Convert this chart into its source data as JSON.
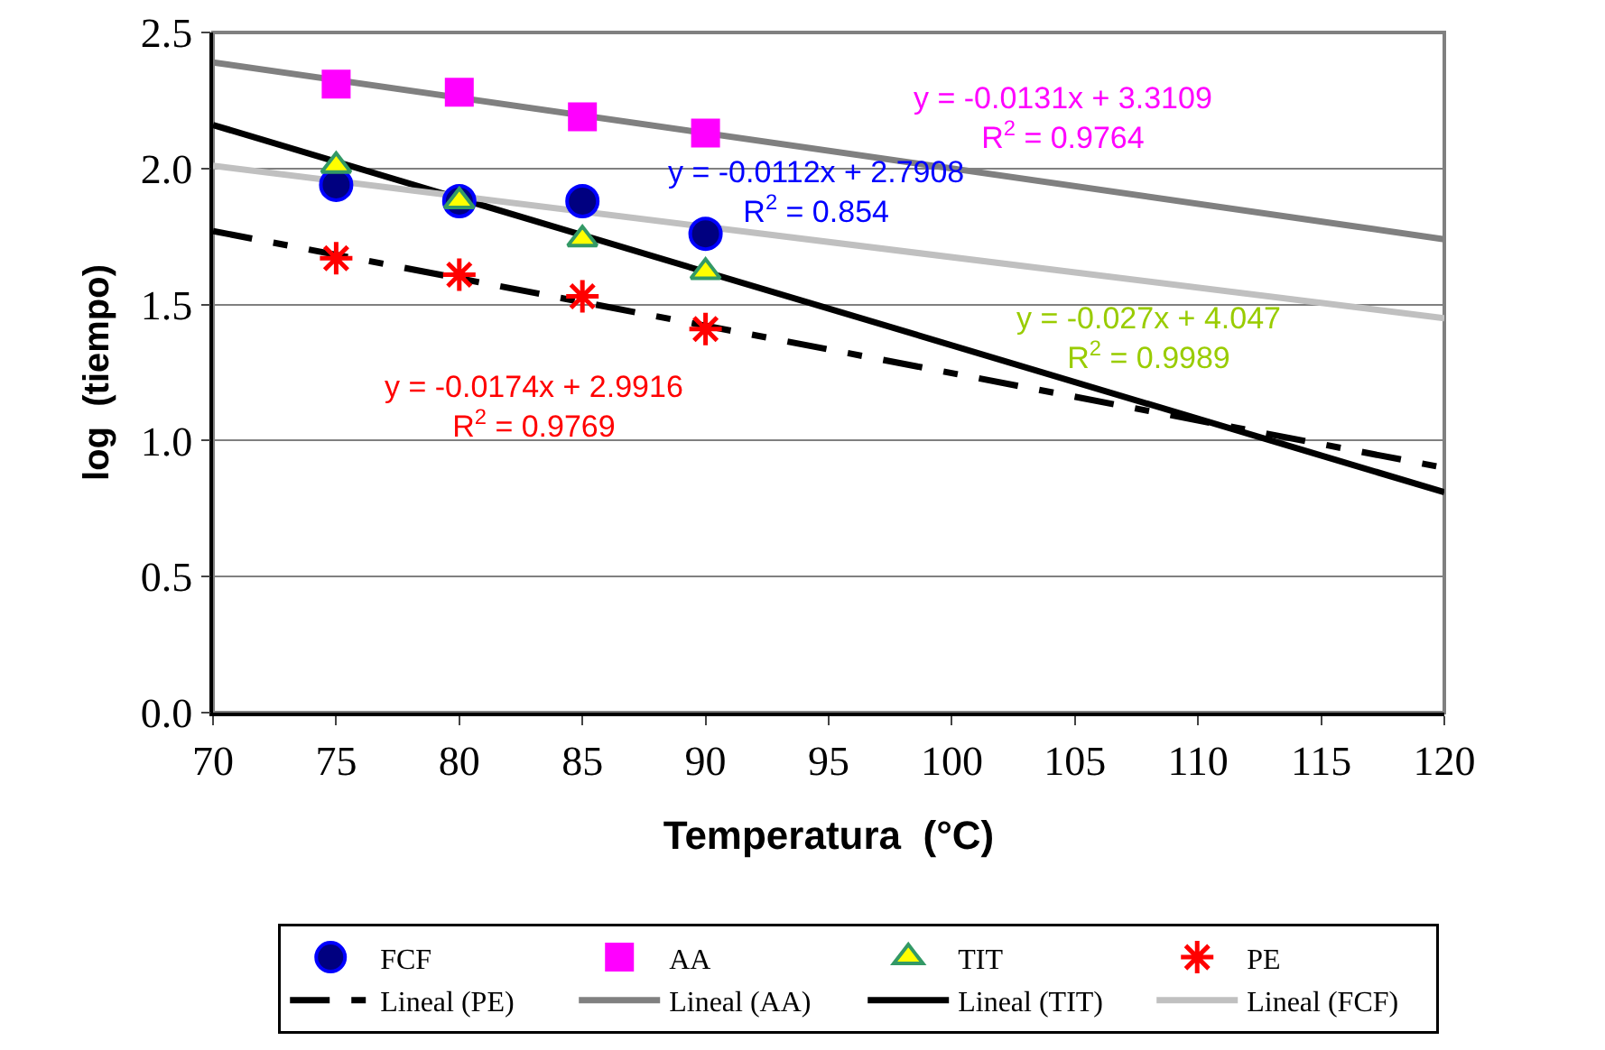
{
  "chart_data": {
    "type": "scatter",
    "xlabel": "Temperatura  (°C)",
    "ylabel": "log  (tiempo)",
    "xlim": [
      70,
      120
    ],
    "xticks": [
      70,
      75,
      80,
      85,
      90,
      95,
      100,
      105,
      110,
      115,
      120
    ],
    "ylim": [
      0,
      2.5
    ],
    "yticks": [
      {
        "value": 0,
        "label": "0.0"
      },
      {
        "value": 0.5,
        "label": "0.5"
      },
      {
        "value": 1,
        "label": "1.0"
      },
      {
        "value": 1.5,
        "label": "1.5"
      },
      {
        "value": 2,
        "label": "2.0"
      },
      {
        "value": 2.5,
        "label": "2.5"
      }
    ],
    "grid": "y",
    "legend": "bottom",
    "series": [
      {
        "name": "FCF",
        "marker": "circle",
        "color": "#000080",
        "x": [
          75,
          80,
          85,
          90
        ],
        "values": [
          1.94,
          1.88,
          1.88,
          1.76
        ]
      },
      {
        "name": "AA",
        "marker": "square",
        "color": "#ff00ff",
        "x": [
          75,
          80,
          85,
          90
        ],
        "values": [
          2.31,
          2.28,
          2.19,
          2.13
        ]
      },
      {
        "name": "TIT",
        "marker": "triangle",
        "color": "#ffff00",
        "x": [
          75,
          80,
          85,
          90
        ],
        "values": [
          2.01,
          1.88,
          1.74,
          1.62
        ]
      },
      {
        "name": "PE",
        "marker": "cross",
        "color": "#ff0000",
        "x": [
          75,
          80,
          85,
          90
        ],
        "values": [
          1.67,
          1.61,
          1.53,
          1.41
        ]
      },
      {
        "name": "Lineal (PE)",
        "type": "line",
        "line_style": "dashed",
        "color": "#000000",
        "x": [
          70,
          120
        ],
        "values": [
          1.77,
          0.9
        ]
      },
      {
        "name": "Lineal (AA)",
        "type": "line",
        "line_style": "solid",
        "color": "#808080",
        "x": [
          70,
          120
        ],
        "values": [
          2.39,
          1.74
        ]
      },
      {
        "name": "Lineal (TIT)",
        "type": "line",
        "line_style": "solid",
        "color": "#000000",
        "x": [
          70,
          120
        ],
        "values": [
          2.16,
          0.81
        ]
      },
      {
        "name": "Lineal (FCF)",
        "type": "line",
        "line_style": "solid",
        "color": "#c0c0c0",
        "x": [
          70,
          120
        ],
        "values": [
          2.01,
          1.45
        ]
      }
    ],
    "annotations": [
      "y = -0.0112x + 2.7908\nR$^{2}$ = 0.854",
      "y = -0.0131x + 3.3109\nR$^{2}$ = 0.9764",
      "y = -0.027x + 4.047\nR$^{2}$ = 0.9989",
      "y = -0.0174x + 2.9916\nR$^{2}$ = 0.9769"
    ]
  }
}
